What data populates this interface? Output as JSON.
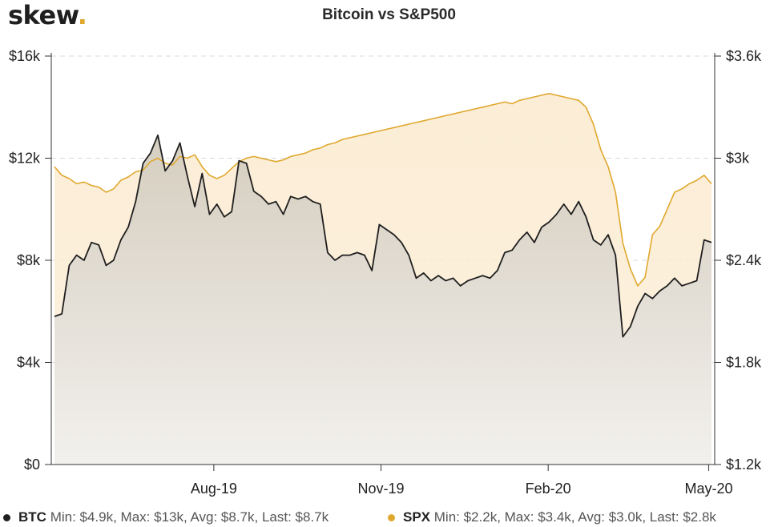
{
  "brand": {
    "name": "skew",
    "dot": "."
  },
  "chart_data": {
    "type": "area",
    "title": "Bitcoin vs S&P500",
    "x_ticks": [
      "Aug-19",
      "Nov-19",
      "Feb-20",
      "May-20"
    ],
    "x_tick_positions": [
      0.245,
      0.497,
      0.749,
      0.991
    ],
    "y_left": {
      "ticks": [
        "$0",
        "$4k",
        "$8k",
        "$12k",
        "$16k"
      ],
      "min": 0,
      "max": 16000
    },
    "y_right": {
      "ticks": [
        "$1.2k",
        "$1.8k",
        "$2.4k",
        "$3k",
        "$3.6k"
      ],
      "min": 1200,
      "max": 3600
    },
    "series": [
      {
        "name": "BTC",
        "axis": "left",
        "color": "#1f1f1f",
        "fill": "#d2cbbd",
        "stats": "Min: $4.9k, Max: $13k, Avg: $8.7k, Last: $8.7k",
        "values": [
          5800,
          5900,
          7800,
          8200,
          8000,
          8700,
          8600,
          7800,
          8000,
          8800,
          9300,
          10300,
          11800,
          12200,
          12900,
          11500,
          11900,
          12600,
          11300,
          10100,
          11400,
          9800,
          10200,
          9700,
          9900,
          11900,
          11800,
          10700,
          10500,
          10200,
          10300,
          9800,
          10500,
          10400,
          10500,
          10300,
          10200,
          8300,
          8000,
          8200,
          8200,
          8300,
          8200,
          7600,
          9400,
          9200,
          9000,
          8700,
          8200,
          7300,
          7500,
          7200,
          7400,
          7200,
          7300,
          7000,
          7200,
          7300,
          7400,
          7300,
          7600,
          8300,
          8400,
          8800,
          9100,
          8700,
          9300,
          9500,
          9800,
          10200,
          9800,
          10300,
          9700,
          8800,
          8600,
          9000,
          8200,
          5000,
          5400,
          6200,
          6700,
          6500,
          6800,
          7000,
          7300,
          7000,
          7100,
          7200,
          8800,
          8700
        ]
      },
      {
        "name": "SPX",
        "axis": "right",
        "color": "#e0a82e",
        "fill": "#fbecd3",
        "stats": "Min: $2.2k, Max: $3.4k, Avg: $3.0k, Last: $2.8k",
        "values": [
          2950,
          2900,
          2880,
          2850,
          2860,
          2840,
          2830,
          2800,
          2820,
          2870,
          2890,
          2920,
          2930,
          2980,
          3000,
          2970,
          2960,
          3010,
          3000,
          3020,
          2950,
          2900,
          2880,
          2900,
          2940,
          2980,
          3000,
          3010,
          3000,
          2990,
          2980,
          2990,
          3010,
          3020,
          3030,
          3050,
          3060,
          3080,
          3090,
          3110,
          3120,
          3130,
          3140,
          3150,
          3160,
          3170,
          3180,
          3190,
          3200,
          3210,
          3220,
          3230,
          3240,
          3250,
          3260,
          3270,
          3280,
          3290,
          3300,
          3310,
          3320,
          3330,
          3320,
          3340,
          3350,
          3360,
          3370,
          3380,
          3370,
          3360,
          3350,
          3340,
          3300,
          3200,
          3050,
          2950,
          2800,
          2500,
          2350,
          2250,
          2300,
          2550,
          2600,
          2700,
          2800,
          2820,
          2850,
          2870,
          2900,
          2850
        ]
      }
    ]
  }
}
